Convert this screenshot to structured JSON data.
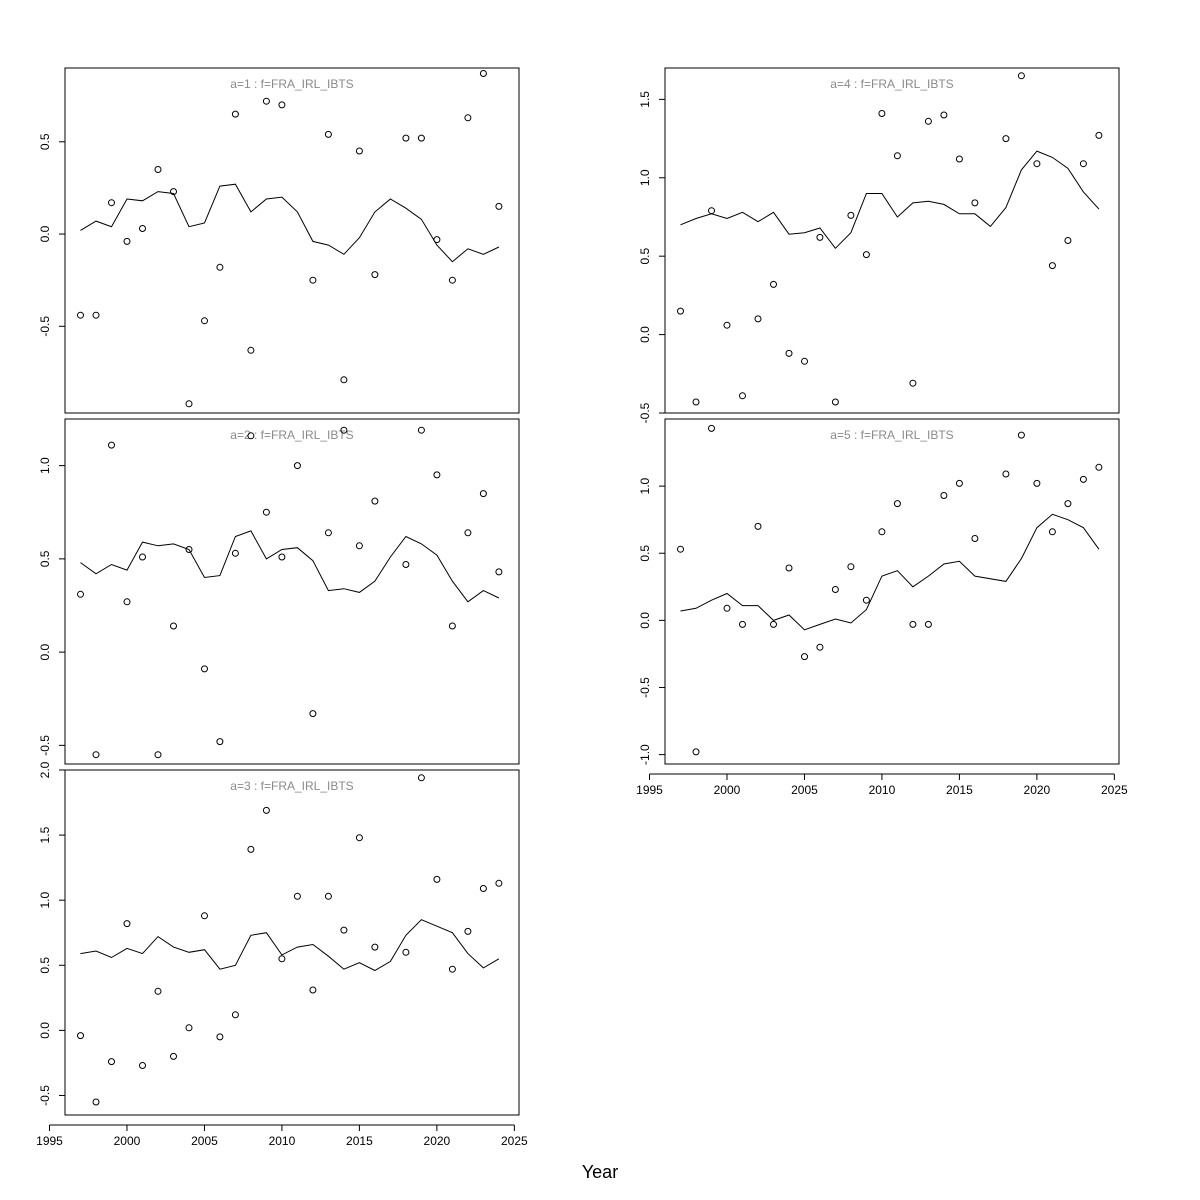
{
  "figure": {
    "xlabel": "Year",
    "x_ticks": [
      1995,
      2000,
      2005,
      2010,
      2015,
      2020,
      2025
    ]
  },
  "chart_data": [
    {
      "type": "scatter",
      "title": "a=1  :  f=FRA_IRL_IBTS",
      "xlim": [
        1996.0,
        2025.3
      ],
      "ylim": [
        -0.97,
        0.9
      ],
      "yticks": [
        -0.5,
        0.0,
        0.5
      ],
      "x_axis_labels": false,
      "points": {
        "x": [
          1997,
          1998,
          1999,
          2000,
          2001,
          2002,
          2003,
          2004,
          2005,
          2006,
          2007,
          2008,
          2009,
          2010,
          2012,
          2013,
          2014,
          2015,
          2016,
          2018,
          2019,
          2020,
          2021,
          2022,
          2023,
          2024
        ],
        "y": [
          -0.44,
          -0.44,
          0.17,
          -0.04,
          0.03,
          0.35,
          0.23,
          -0.92,
          -0.47,
          -0.18,
          0.65,
          -0.63,
          0.72,
          0.7,
          -0.25,
          0.54,
          -0.79,
          0.45,
          -0.22,
          0.52,
          0.52,
          -0.03,
          -0.25,
          0.63,
          0.87,
          0.15
        ]
      },
      "fitted": {
        "x": [
          1997,
          1998,
          1999,
          2000,
          2001,
          2002,
          2003,
          2004,
          2005,
          2006,
          2007,
          2008,
          2009,
          2010,
          2011,
          2012,
          2013,
          2014,
          2015,
          2016,
          2017,
          2018,
          2019,
          2020,
          2021,
          2022,
          2023,
          2024
        ],
        "y": [
          0.02,
          0.07,
          0.04,
          0.19,
          0.18,
          0.23,
          0.22,
          0.04,
          0.06,
          0.26,
          0.27,
          0.12,
          0.19,
          0.2,
          0.12,
          -0.04,
          -0.06,
          -0.11,
          -0.02,
          0.12,
          0.19,
          0.14,
          0.08,
          -0.06,
          -0.15,
          -0.08,
          -0.11,
          -0.07
        ]
      }
    },
    {
      "type": "scatter",
      "title": "a=2  :  f=FRA_IRL_IBTS",
      "xlim": [
        1996.0,
        2025.3
      ],
      "ylim": [
        -0.6,
        1.25
      ],
      "yticks": [
        -0.5,
        0.0,
        0.5,
        1.0
      ],
      "x_axis_labels": false,
      "points": {
        "x": [
          1997,
          1998,
          1999,
          2000,
          2001,
          2002,
          2003,
          2004,
          2005,
          2006,
          2007,
          2008,
          2009,
          2010,
          2011,
          2012,
          2013,
          2014,
          2015,
          2016,
          2018,
          2019,
          2020,
          2021,
          2022,
          2023,
          2024
        ],
        "y": [
          0.31,
          -0.55,
          1.11,
          0.27,
          0.51,
          -0.55,
          0.14,
          0.55,
          -0.09,
          -0.48,
          0.53,
          1.16,
          0.75,
          0.51,
          1.0,
          -0.33,
          0.64,
          1.19,
          0.57,
          0.81,
          0.47,
          1.19,
          0.95,
          0.14,
          0.64,
          0.85,
          0.43
        ]
      },
      "fitted": {
        "x": [
          1997,
          1998,
          1999,
          2000,
          2001,
          2002,
          2003,
          2004,
          2005,
          2006,
          2007,
          2008,
          2009,
          2010,
          2011,
          2012,
          2013,
          2014,
          2015,
          2016,
          2017,
          2018,
          2019,
          2020,
          2021,
          2022,
          2023,
          2024
        ],
        "y": [
          0.48,
          0.42,
          0.47,
          0.44,
          0.59,
          0.57,
          0.58,
          0.55,
          0.4,
          0.41,
          0.62,
          0.65,
          0.5,
          0.55,
          0.56,
          0.49,
          0.33,
          0.34,
          0.32,
          0.38,
          0.51,
          0.62,
          0.58,
          0.52,
          0.38,
          0.27,
          0.33,
          0.29
        ]
      }
    },
    {
      "type": "scatter",
      "title": "a=3  :  f=FRA_IRL_IBTS",
      "xlim": [
        1996.0,
        2025.3
      ],
      "ylim": [
        -0.65,
        2.0
      ],
      "yticks": [
        -0.5,
        0.0,
        0.5,
        1.0,
        1.5,
        2.0
      ],
      "x_axis_labels": true,
      "points": {
        "x": [
          1997,
          1998,
          1999,
          2000,
          2001,
          2002,
          2003,
          2004,
          2005,
          2006,
          2007,
          2008,
          2009,
          2010,
          2011,
          2012,
          2013,
          2014,
          2015,
          2016,
          2018,
          2019,
          2020,
          2021,
          2022,
          2023,
          2024
        ],
        "y": [
          -0.04,
          -0.55,
          -0.24,
          0.82,
          -0.27,
          0.3,
          -0.2,
          0.02,
          0.88,
          -0.05,
          0.12,
          1.39,
          1.69,
          0.55,
          1.03,
          0.31,
          1.03,
          0.77,
          1.48,
          0.64,
          0.6,
          1.94,
          1.16,
          0.47,
          0.76,
          1.09,
          1.13
        ]
      },
      "fitted": {
        "x": [
          1997,
          1998,
          1999,
          2000,
          2001,
          2002,
          2003,
          2004,
          2005,
          2006,
          2007,
          2008,
          2009,
          2010,
          2011,
          2012,
          2013,
          2014,
          2015,
          2016,
          2017,
          2018,
          2019,
          2020,
          2021,
          2022,
          2023,
          2024
        ],
        "y": [
          0.59,
          0.61,
          0.56,
          0.63,
          0.59,
          0.72,
          0.64,
          0.6,
          0.62,
          0.47,
          0.5,
          0.73,
          0.75,
          0.58,
          0.64,
          0.66,
          0.57,
          0.47,
          0.52,
          0.46,
          0.53,
          0.73,
          0.85,
          0.8,
          0.75,
          0.59,
          0.48,
          0.55
        ]
      }
    },
    {
      "type": "scatter",
      "title": "a=4  :  f=FRA_IRL_IBTS",
      "xlim": [
        1996.0,
        2025.3
      ],
      "ylim": [
        -0.5,
        1.7
      ],
      "yticks": [
        -0.5,
        0.0,
        0.5,
        1.0,
        1.5
      ],
      "x_axis_labels": false,
      "points": {
        "x": [
          1997,
          1998,
          1999,
          2000,
          2001,
          2002,
          2003,
          2004,
          2005,
          2006,
          2007,
          2008,
          2009,
          2010,
          2011,
          2012,
          2013,
          2014,
          2015,
          2016,
          2018,
          2019,
          2020,
          2021,
          2022,
          2023,
          2024
        ],
        "y": [
          0.15,
          -0.43,
          0.79,
          0.06,
          -0.39,
          0.1,
          0.32,
          -0.12,
          -0.17,
          0.62,
          -0.43,
          0.76,
          0.51,
          1.41,
          1.14,
          -0.31,
          1.36,
          1.4,
          1.12,
          0.84,
          1.25,
          1.65,
          1.09,
          0.44,
          0.6,
          1.09,
          1.27
        ]
      },
      "fitted": {
        "x": [
          1997,
          1998,
          1999,
          2000,
          2001,
          2002,
          2003,
          2004,
          2005,
          2006,
          2007,
          2008,
          2009,
          2010,
          2011,
          2012,
          2013,
          2014,
          2015,
          2016,
          2017,
          2018,
          2019,
          2020,
          2021,
          2022,
          2023,
          2024
        ],
        "y": [
          0.7,
          0.74,
          0.77,
          0.74,
          0.78,
          0.72,
          0.78,
          0.64,
          0.65,
          0.68,
          0.55,
          0.65,
          0.9,
          0.9,
          0.75,
          0.84,
          0.85,
          0.83,
          0.77,
          0.77,
          0.69,
          0.81,
          1.05,
          1.17,
          1.13,
          1.06,
          0.91,
          0.8
        ]
      }
    },
    {
      "type": "scatter",
      "title": "a=5  :  f=FRA_IRL_IBTS",
      "xlim": [
        1996.0,
        2025.3
      ],
      "ylim": [
        -1.07,
        1.5
      ],
      "yticks": [
        -1.0,
        -0.5,
        0.0,
        0.5,
        1.0
      ],
      "x_axis_labels": true,
      "points": {
        "x": [
          1997,
          1998,
          1999,
          2000,
          2001,
          2002,
          2003,
          2004,
          2005,
          2006,
          2007,
          2008,
          2009,
          2010,
          2011,
          2012,
          2013,
          2014,
          2015,
          2016,
          2018,
          2019,
          2020,
          2021,
          2022,
          2023,
          2024
        ],
        "y": [
          0.53,
          -0.98,
          1.43,
          0.09,
          -0.03,
          0.7,
          -0.03,
          0.39,
          -0.27,
          -0.2,
          0.23,
          0.4,
          0.15,
          0.66,
          0.87,
          -0.03,
          -0.03,
          0.93,
          1.02,
          0.61,
          1.09,
          1.38,
          1.02,
          0.66,
          0.87,
          1.05,
          1.14
        ]
      },
      "fitted": {
        "x": [
          1997,
          1998,
          1999,
          2000,
          2001,
          2002,
          2003,
          2004,
          2005,
          2006,
          2007,
          2008,
          2009,
          2010,
          2011,
          2012,
          2013,
          2014,
          2015,
          2016,
          2018,
          2019,
          2020,
          2021,
          2022,
          2023,
          2024
        ],
        "y": [
          0.07,
          0.09,
          0.15,
          0.2,
          0.11,
          0.11,
          0.0,
          0.04,
          -0.07,
          -0.03,
          0.01,
          -0.02,
          0.08,
          0.33,
          0.37,
          0.25,
          0.33,
          0.42,
          0.44,
          0.33,
          0.29,
          0.46,
          0.69,
          0.79,
          0.75,
          0.69,
          0.53
        ]
      }
    }
  ]
}
